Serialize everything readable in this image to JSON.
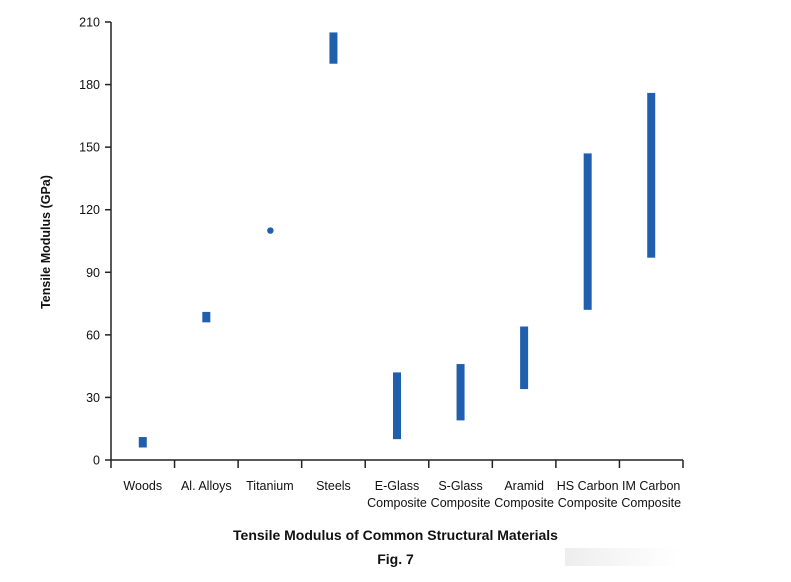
{
  "chart_data": {
    "type": "range-bar",
    "title": "Tensile Modulus of Common Structural Materials",
    "subtitle": "Fig. 7",
    "ylabel": "Tensile Modulus (GPa)",
    "xlabel": "",
    "ylim": [
      0,
      210
    ],
    "yticks": [
      0,
      30,
      60,
      90,
      120,
      150,
      180,
      210
    ],
    "grid": false,
    "bar_color": "#1f5fae",
    "categories": [
      {
        "label": [
          "Woods"
        ],
        "min": 6,
        "max": 11
      },
      {
        "label": [
          "Al. Alloys"
        ],
        "min": 66,
        "max": 71
      },
      {
        "label": [
          "Titanium"
        ],
        "min": 110,
        "max": 110
      },
      {
        "label": [
          "Steels"
        ],
        "min": 190,
        "max": 205
      },
      {
        "label": [
          "E-Glass",
          "Composite"
        ],
        "min": 10,
        "max": 42
      },
      {
        "label": [
          "S-Glass",
          "Composite"
        ],
        "min": 19,
        "max": 46
      },
      {
        "label": [
          "Aramid",
          "Composite"
        ],
        "min": 34,
        "max": 64
      },
      {
        "label": [
          "HS Carbon",
          "Composite"
        ],
        "min": 72,
        "max": 147
      },
      {
        "label": [
          "IM Carbon",
          "Composite"
        ],
        "min": 97,
        "max": 176
      }
    ]
  }
}
